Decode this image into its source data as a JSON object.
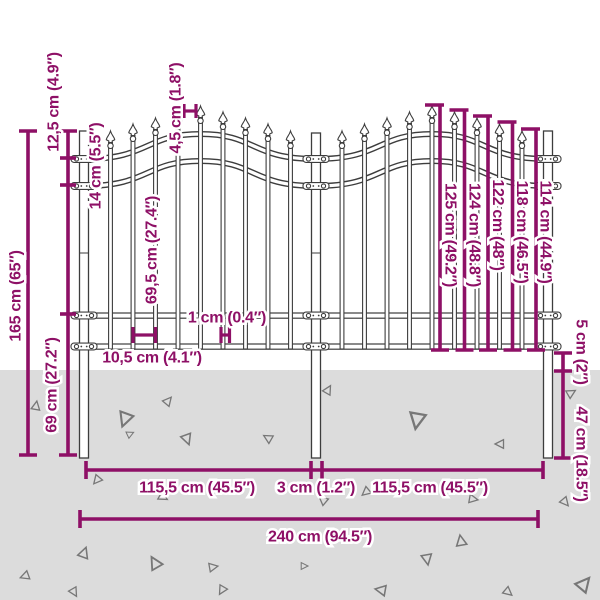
{
  "diagram": {
    "type": "product-dimension-diagram",
    "subject": "garden fence with spear top pickets, two arched sections, three ground-spike posts"
  },
  "measurements": {
    "total_height": "165 cm (65″)",
    "post_top_segment": "12,5 cm (4.9″)",
    "rail_spacing_top": "14 cm (5.5″)",
    "middle_segment": "69,5 cm (27.4″)",
    "bottom_segment": "69 cm (27.2″)",
    "picket_gap_top": "4,5 cm (1.8″)",
    "picket_width": "1 cm (0.4″)",
    "picket_gap_bottom": "10,5 cm (4.1″)",
    "picket_heights": [
      "125 cm (49.2″)",
      "124 cm (48.8″)",
      "122 cm (48″)",
      "118 cm (46.5″)",
      "114 cm (44.9″)"
    ],
    "rail_to_ground": "5 cm (2″)",
    "ground_spike_depth": "47 cm (18.5″)",
    "section_width_left": "115,5 cm (45.5″)",
    "center_post_gap": "3 cm (1.2″)",
    "section_width_right": "115,5 cm (45.5″)",
    "total_width": "240 cm (94.5″)"
  },
  "colors": {
    "dimension": "#8e1066",
    "ground": "#dcdcdc",
    "fence_outline": "#3d3d3d",
    "background": "#ffffff"
  }
}
